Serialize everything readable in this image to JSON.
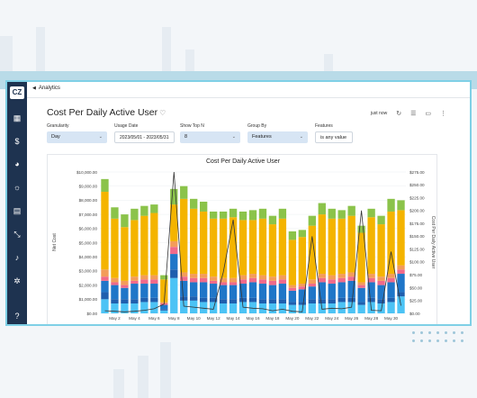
{
  "app": {
    "logo": "CZ",
    "breadcrumb": "Analytics"
  },
  "page": {
    "title": "Cost Per Daily Active User",
    "last_updated": "just now"
  },
  "filters": [
    {
      "label": "Granularity",
      "value": "Day"
    },
    {
      "label": "Usage Date",
      "value": "2023/05/01 - 2023/05/31"
    },
    {
      "label": "Show Top N",
      "value": "8"
    },
    {
      "label": "Group By",
      "value": "Features"
    },
    {
      "label": "Features",
      "value": "is any value"
    }
  ],
  "sidebar_icons": [
    "dashboard-icon",
    "dollar-icon",
    "chart-pie-icon",
    "lightbulb-icon",
    "document-icon",
    "resize-icon",
    "bell-icon",
    "settings-icon",
    "help-icon"
  ],
  "colors": {
    "sidebar": "#1e3350",
    "accent_border": "#7fd0e6",
    "line": "#333333"
  },
  "chart_data": {
    "type": "bar",
    "stacked": true,
    "title": "Cost Per Daily Active User",
    "ylabel": "Net Cost",
    "y2label": "Cost Per Daily Active User",
    "ylim": [
      0,
      10000
    ],
    "y2lim": [
      0,
      275
    ],
    "y_ticks": [
      "$0.00",
      "$1,000.00",
      "$2,000.00",
      "$3,000.00",
      "$4,000.00",
      "$5,000.00",
      "$6,000.00",
      "$7,000.00",
      "$8,000.00",
      "$9,000.00",
      "$10,000.00"
    ],
    "y2_ticks": [
      "$0.00",
      "$25.00",
      "$50.00",
      "$75.00",
      "$100.00",
      "$125.00",
      "$150.00",
      "$175.00",
      "$200.00",
      "$225.00",
      "$250.00",
      "$275.00"
    ],
    "x_tick_labels": [
      "May 2",
      "May 4",
      "May 6",
      "May 8",
      "May 10",
      "May 12",
      "May 14",
      "May 16",
      "May 18",
      "May 20",
      "May 22",
      "May 24",
      "May 26",
      "May 28",
      "May 30"
    ],
    "categories": [
      "May 1",
      "May 2",
      "May 3",
      "May 4",
      "May 5",
      "May 6",
      "May 7",
      "May 8",
      "May 9",
      "May 10",
      "May 11",
      "May 12",
      "May 13",
      "May 14",
      "May 15",
      "May 16",
      "May 17",
      "May 18",
      "May 19",
      "May 20",
      "May 21",
      "May 22",
      "May 23",
      "May 24",
      "May 25",
      "May 26",
      "May 27",
      "May 28",
      "May 29",
      "May 30",
      "May 31"
    ],
    "series_colors": [
      "#4cc3f5",
      "#1f5fae",
      "#1f76c8",
      "#f06a8a",
      "#f39c5a",
      "#f4b400",
      "#8bc34a"
    ],
    "series": [
      {
        "values": [
          1000,
          700,
          700,
          700,
          800,
          800,
          200,
          2500,
          900,
          900,
          800,
          800,
          700,
          700,
          800,
          800,
          700,
          700,
          700,
          600,
          600,
          700,
          700,
          700,
          800,
          800,
          600,
          800,
          700,
          800,
          1200
        ]
      },
      {
        "values": [
          500,
          300,
          300,
          300,
          300,
          300,
          100,
          600,
          300,
          300,
          300,
          300,
          300,
          300,
          300,
          300,
          300,
          300,
          300,
          200,
          200,
          300,
          300,
          300,
          300,
          300,
          200,
          300,
          300,
          300,
          300
        ]
      },
      {
        "values": [
          800,
          1000,
          800,
          1100,
          1000,
          1000,
          300,
          1100,
          1100,
          1000,
          1100,
          1000,
          1000,
          1000,
          1000,
          1100,
          1100,
          1000,
          1100,
          800,
          900,
          900,
          1200,
          1100,
          1100,
          1200,
          1000,
          1100,
          1000,
          1100,
          1300
        ]
      },
      {
        "values": [
          300,
          200,
          200,
          200,
          300,
          300,
          100,
          500,
          300,
          300,
          300,
          200,
          200,
          200,
          300,
          300,
          300,
          300,
          300,
          200,
          200,
          200,
          300,
          300,
          300,
          300,
          200,
          300,
          300,
          300,
          300
        ]
      },
      {
        "values": [
          500,
          300,
          300,
          300,
          300,
          300,
          100,
          400,
          300,
          300,
          300,
          300,
          300,
          300,
          300,
          300,
          300,
          300,
          300,
          200,
          200,
          300,
          300,
          300,
          300,
          300,
          200,
          300,
          300,
          300,
          300
        ]
      },
      {
        "values": [
          5500,
          4200,
          3800,
          4000,
          4200,
          4400,
          1600,
          2600,
          5200,
          4600,
          4400,
          4100,
          4200,
          4300,
          3900,
          3800,
          4000,
          3700,
          4000,
          3200,
          3300,
          3800,
          4200,
          4000,
          3900,
          4000,
          3500,
          4000,
          3700,
          4400,
          3900
        ]
      },
      {
        "values": [
          900,
          800,
          900,
          800,
          700,
          600,
          300,
          1100,
          900,
          700,
          700,
          500,
          500,
          600,
          600,
          700,
          700,
          600,
          700,
          600,
          500,
          700,
          800,
          700,
          600,
          700,
          500,
          600,
          600,
          900,
          700
        ]
      }
    ],
    "line": {
      "name": "Cost Per Daily Active User",
      "axis": "y2",
      "values": [
        5,
        4,
        3,
        4,
        6,
        9,
        18,
        275,
        14,
        12,
        10,
        8,
        80,
        182,
        12,
        10,
        9,
        5,
        8,
        4,
        3,
        150,
        8,
        10,
        9,
        12,
        200,
        6,
        5,
        120,
        15
      ]
    }
  }
}
